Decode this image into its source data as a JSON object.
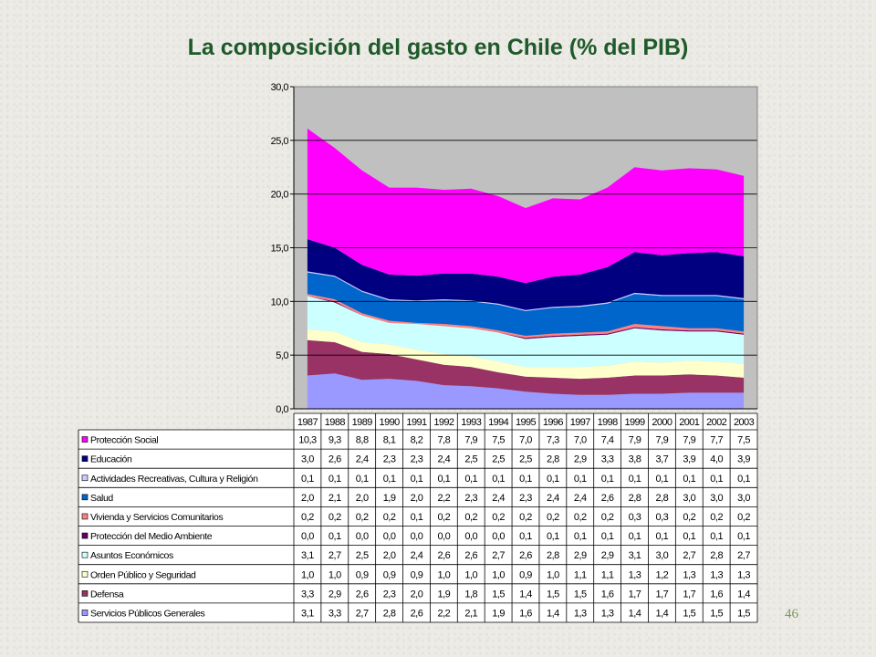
{
  "slide": {
    "title": "La composición del gasto en Chile (% del PIB)",
    "page_number": "46"
  },
  "chart_data": {
    "type": "area",
    "stacked": true,
    "title": "La composición del gasto en Chile (% del PIB)",
    "ylim": [
      0,
      30
    ],
    "yticks": [
      "0,0",
      "5,0",
      "10,0",
      "15,0",
      "20,0",
      "25,0",
      "30,0"
    ],
    "grid": true,
    "legend": "table-below",
    "x": [
      "1987",
      "1988",
      "1989",
      "1990",
      "1991",
      "1992",
      "1993",
      "1994",
      "1995",
      "1996",
      "1997",
      "1998",
      "1999",
      "2000",
      "2001",
      "2002",
      "2003"
    ],
    "series": [
      {
        "name": "Servicios Públicos Generales",
        "color": "#9999ff",
        "values": [
          3.1,
          3.3,
          2.7,
          2.8,
          2.6,
          2.2,
          2.1,
          1.9,
          1.6,
          1.4,
          1.3,
          1.3,
          1.4,
          1.4,
          1.5,
          1.5,
          1.5
        ],
        "labels": [
          "3,1",
          "3,3",
          "2,7",
          "2,8",
          "2,6",
          "2,2",
          "2,1",
          "1,9",
          "1,6",
          "1,4",
          "1,3",
          "1,3",
          "1,4",
          "1,4",
          "1,5",
          "1,5",
          "1,5"
        ]
      },
      {
        "name": "Defensa",
        "color": "#993366",
        "values": [
          3.3,
          2.9,
          2.6,
          2.3,
          2.0,
          1.9,
          1.8,
          1.5,
          1.4,
          1.5,
          1.5,
          1.6,
          1.7,
          1.7,
          1.7,
          1.6,
          1.4
        ],
        "labels": [
          "3,3",
          "2,9",
          "2,6",
          "2,3",
          "2,0",
          "1,9",
          "1,8",
          "1,5",
          "1,4",
          "1,5",
          "1,5",
          "1,6",
          "1,7",
          "1,7",
          "1,7",
          "1,6",
          "1,4"
        ]
      },
      {
        "name": "Orden Público y Seguridad",
        "color": "#ffffcc",
        "values": [
          1.0,
          1.0,
          0.9,
          0.9,
          0.9,
          1.0,
          1.0,
          1.0,
          0.9,
          1.0,
          1.1,
          1.1,
          1.3,
          1.2,
          1.3,
          1.3,
          1.3
        ],
        "labels": [
          "1,0",
          "1,0",
          "0,9",
          "0,9",
          "0,9",
          "1,0",
          "1,0",
          "1,0",
          "0,9",
          "1,0",
          "1,1",
          "1,1",
          "1,3",
          "1,2",
          "1,3",
          "1,3",
          "1,3"
        ]
      },
      {
        "name": "Asuntos Económicos",
        "color": "#ccffff",
        "values": [
          3.1,
          2.7,
          2.5,
          2.0,
          2.4,
          2.6,
          2.6,
          2.7,
          2.6,
          2.8,
          2.9,
          2.9,
          3.1,
          3.0,
          2.7,
          2.8,
          2.7
        ],
        "labels": [
          "3,1",
          "2,7",
          "2,5",
          "2,0",
          "2,4",
          "2,6",
          "2,6",
          "2,7",
          "2,6",
          "2,8",
          "2,9",
          "2,9",
          "3,1",
          "3,0",
          "2,7",
          "2,8",
          "2,7"
        ]
      },
      {
        "name": "Protección del Medio Ambiente",
        "color": "#660066",
        "values": [
          0.0,
          0.1,
          0.0,
          0.0,
          0.0,
          0.0,
          0.0,
          0.0,
          0.1,
          0.1,
          0.1,
          0.1,
          0.1,
          0.1,
          0.1,
          0.1,
          0.1
        ],
        "labels": [
          "0,0",
          "0,1",
          "0,0",
          "0,0",
          "0,0",
          "0,0",
          "0,0",
          "0,0",
          "0,1",
          "0,1",
          "0,1",
          "0,1",
          "0,1",
          "0,1",
          "0,1",
          "0,1",
          "0,1"
        ]
      },
      {
        "name": "Vivienda y Servicios Comunitarios",
        "color": "#ff8080",
        "values": [
          0.2,
          0.2,
          0.2,
          0.2,
          0.1,
          0.2,
          0.2,
          0.2,
          0.2,
          0.2,
          0.2,
          0.2,
          0.3,
          0.3,
          0.2,
          0.2,
          0.2
        ],
        "labels": [
          "0,2",
          "0,2",
          "0,2",
          "0,2",
          "0,1",
          "0,2",
          "0,2",
          "0,2",
          "0,2",
          "0,2",
          "0,2",
          "0,2",
          "0,3",
          "0,3",
          "0,2",
          "0,2",
          "0,2"
        ]
      },
      {
        "name": "Salud",
        "color": "#0066cc",
        "values": [
          2.0,
          2.1,
          2.0,
          1.9,
          2.0,
          2.2,
          2.3,
          2.4,
          2.3,
          2.4,
          2.4,
          2.6,
          2.8,
          2.8,
          3.0,
          3.0,
          3.0
        ],
        "labels": [
          "2,0",
          "2,1",
          "2,0",
          "1,9",
          "2,0",
          "2,2",
          "2,3",
          "2,4",
          "2,3",
          "2,4",
          "2,4",
          "2,6",
          "2,8",
          "2,8",
          "3,0",
          "3,0",
          "3,0"
        ]
      },
      {
        "name": "Actividades Recreativas, Cultura y Religión",
        "color": "#ccccff",
        "values": [
          0.1,
          0.1,
          0.1,
          0.1,
          0.1,
          0.1,
          0.1,
          0.1,
          0.1,
          0.1,
          0.1,
          0.1,
          0.1,
          0.1,
          0.1,
          0.1,
          0.1
        ],
        "labels": [
          "0,1",
          "0,1",
          "0,1",
          "0,1",
          "0,1",
          "0,1",
          "0,1",
          "0,1",
          "0,1",
          "0,1",
          "0,1",
          "0,1",
          "0,1",
          "0,1",
          "0,1",
          "0,1",
          "0,1"
        ]
      },
      {
        "name": "Educación",
        "color": "#000080",
        "values": [
          3.0,
          2.6,
          2.4,
          2.3,
          2.3,
          2.4,
          2.5,
          2.5,
          2.5,
          2.8,
          2.9,
          3.3,
          3.8,
          3.7,
          3.9,
          4.0,
          3.9
        ],
        "labels": [
          "3,0",
          "2,6",
          "2,4",
          "2,3",
          "2,3",
          "2,4",
          "2,5",
          "2,5",
          "2,5",
          "2,8",
          "2,9",
          "3,3",
          "3,8",
          "3,7",
          "3,9",
          "4,0",
          "3,9"
        ]
      },
      {
        "name": "Protección Social",
        "color": "#ff00ff",
        "values": [
          10.3,
          9.3,
          8.8,
          8.1,
          8.2,
          7.8,
          7.9,
          7.5,
          7.0,
          7.3,
          7.0,
          7.4,
          7.9,
          7.9,
          7.9,
          7.7,
          7.5
        ],
        "labels": [
          "10,3",
          "9,3",
          "8,8",
          "8,1",
          "8,2",
          "7,8",
          "7,9",
          "7,5",
          "7,0",
          "7,3",
          "7,0",
          "7,4",
          "7,9",
          "7,9",
          "7,9",
          "7,7",
          "7,5"
        ]
      }
    ]
  }
}
